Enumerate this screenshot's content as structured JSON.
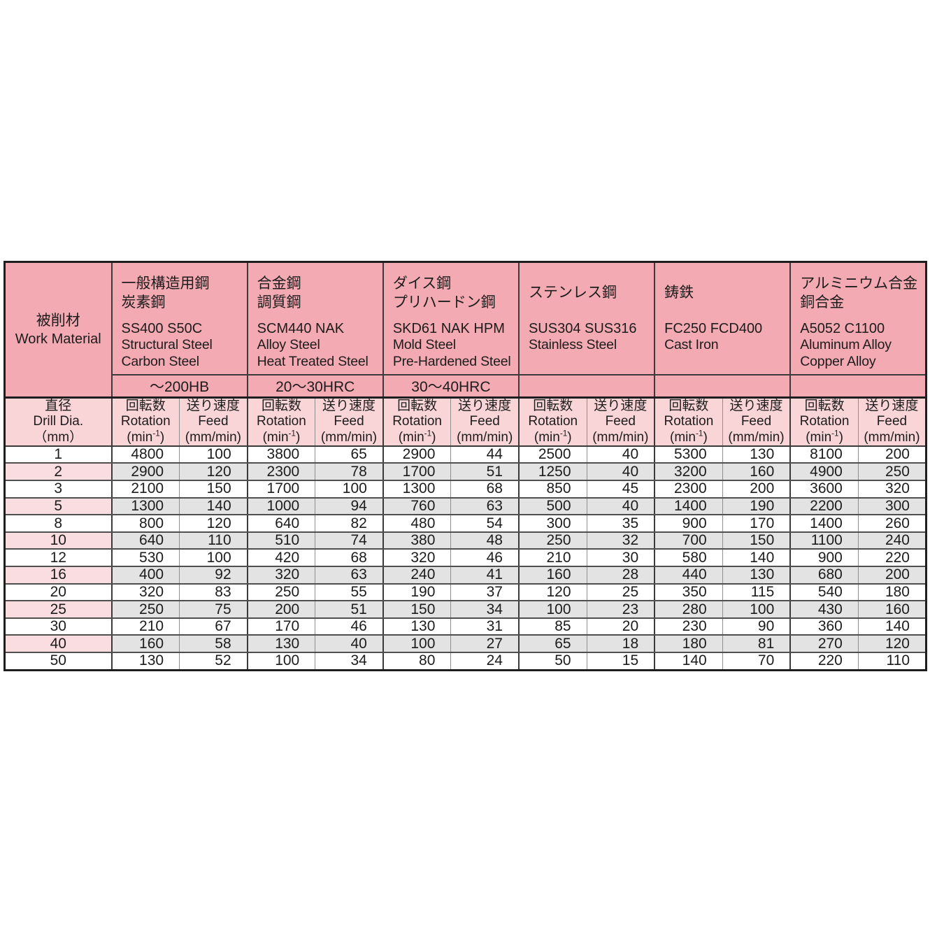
{
  "table": {
    "corner": {
      "jp": "被削材",
      "en": "Work Material"
    },
    "materials": [
      {
        "jp": "一般構造用鋼\n炭素鋼",
        "codes": "SS400 S50C",
        "en": "Structural Steel\nCarbon Steel",
        "hardness": "～200HB"
      },
      {
        "jp": "合金鋼\n調質鋼",
        "codes": "SCM440 NAK",
        "en": "Alloy Steel\nHeat Treated Steel",
        "hardness": "20～30HRC"
      },
      {
        "jp": "ダイス鋼\nプリハードン鋼",
        "codes": "SKD61 NAK HPM",
        "en": "Mold Steel\nPre-Hardened Steel",
        "hardness": "30～40HRC"
      },
      {
        "jp": "ステンレス鋼",
        "codes": "SUS304 SUS316",
        "en": "Stainless Steel",
        "hardness": ""
      },
      {
        "jp": "鋳鉄",
        "codes": "FC250  FCD400",
        "en": "Cast Iron",
        "hardness": ""
      },
      {
        "jp": "アルミニウム合金\n銅合金",
        "codes": "A5052 C1100",
        "en": "Aluminum Alloy\nCopper Alloy",
        "hardness": ""
      }
    ],
    "col_headers": {
      "dia": {
        "jp": "直径",
        "en": "Drill Dia.",
        "unit": "（mm）"
      },
      "rotation": {
        "jp": "回転数",
        "en": "Rotation",
        "unit_pre": "(min",
        "unit_sup": "-1",
        "unit_post": ")"
      },
      "feed": {
        "jp": "送り速度",
        "en": "Feed",
        "unit": "(mm/min)"
      }
    },
    "rows": [
      {
        "dia": "1",
        "shaded": false,
        "values": [
          4800,
          100,
          3800,
          65,
          2900,
          44,
          2500,
          40,
          5300,
          130,
          8100,
          200
        ]
      },
      {
        "dia": "2",
        "shaded": true,
        "values": [
          2900,
          120,
          2300,
          78,
          1700,
          51,
          1250,
          40,
          3200,
          160,
          4900,
          250
        ]
      },
      {
        "dia": "3",
        "shaded": false,
        "values": [
          2100,
          150,
          1700,
          100,
          1300,
          68,
          850,
          45,
          2300,
          200,
          3600,
          320
        ]
      },
      {
        "dia": "5",
        "shaded": true,
        "values": [
          1300,
          140,
          1000,
          94,
          760,
          63,
          500,
          40,
          1400,
          190,
          2200,
          300
        ]
      },
      {
        "dia": "8",
        "shaded": false,
        "values": [
          800,
          120,
          640,
          82,
          480,
          54,
          300,
          35,
          900,
          170,
          1400,
          260
        ]
      },
      {
        "dia": "10",
        "shaded": true,
        "values": [
          640,
          110,
          510,
          74,
          380,
          48,
          250,
          32,
          700,
          150,
          1100,
          240
        ]
      },
      {
        "dia": "12",
        "shaded": false,
        "values": [
          530,
          100,
          420,
          68,
          320,
          46,
          210,
          30,
          580,
          140,
          900,
          220
        ]
      },
      {
        "dia": "16",
        "shaded": true,
        "values": [
          400,
          92,
          320,
          63,
          240,
          41,
          160,
          28,
          440,
          130,
          680,
          200
        ]
      },
      {
        "dia": "20",
        "shaded": false,
        "values": [
          320,
          83,
          250,
          55,
          190,
          37,
          120,
          25,
          350,
          115,
          540,
          180
        ]
      },
      {
        "dia": "25",
        "shaded": true,
        "values": [
          250,
          75,
          200,
          51,
          150,
          34,
          100,
          23,
          280,
          100,
          430,
          160
        ]
      },
      {
        "dia": "30",
        "shaded": false,
        "values": [
          210,
          67,
          170,
          46,
          130,
          31,
          85,
          20,
          230,
          90,
          360,
          140
        ]
      },
      {
        "dia": "40",
        "shaded": true,
        "values": [
          160,
          58,
          130,
          40,
          100,
          27,
          65,
          18,
          180,
          81,
          270,
          120
        ]
      },
      {
        "dia": "50",
        "shaded": false,
        "values": [
          130,
          52,
          100,
          34,
          80,
          24,
          50,
          15,
          140,
          70,
          220,
          110
        ]
      }
    ],
    "colors": {
      "header_pink": "#f3aab2",
      "subheader_pink": "#f9d5d8",
      "shaded_row_pink": "#fadde1",
      "shaded_row_gray": "#e3e3e3",
      "border_dark": "#3a3a3a",
      "border_black": "#1e1e1e",
      "border_row": "#4f4f4f",
      "border_sub": "#8f8f8f",
      "text": "#1c1c1c"
    }
  }
}
